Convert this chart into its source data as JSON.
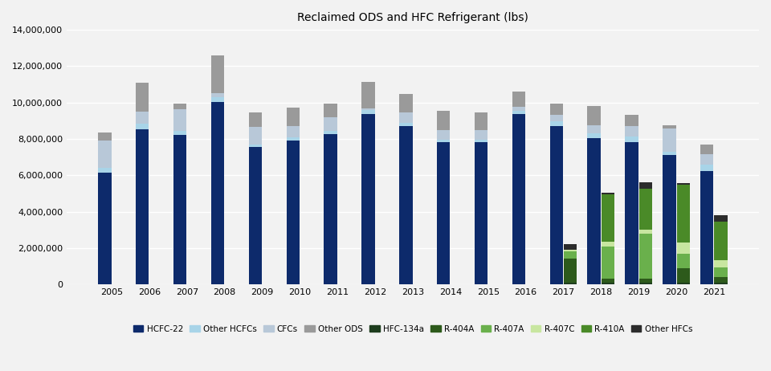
{
  "years": [
    2005,
    2006,
    2007,
    2008,
    2009,
    2010,
    2011,
    2012,
    2013,
    2014,
    2015,
    2016,
    2017,
    2018,
    2019,
    2020,
    2021
  ],
  "title": "Reclaimed ODS and HFC Refrigerant (lbs)",
  "ods_series": {
    "HCFC-22": [
      6150000,
      8550000,
      8200000,
      10050000,
      7550000,
      7900000,
      8250000,
      9350000,
      8700000,
      7800000,
      7800000,
      9350000,
      8700000,
      8050000,
      7800000,
      7100000,
      6250000
    ],
    "Other HCFCs": [
      250000,
      280000,
      220000,
      250000,
      150000,
      180000,
      180000,
      230000,
      180000,
      160000,
      160000,
      180000,
      250000,
      270000,
      320000,
      180000,
      320000
    ],
    "CFCs": [
      1500000,
      680000,
      1200000,
      200000,
      950000,
      620000,
      750000,
      100000,
      580000,
      530000,
      530000,
      240000,
      390000,
      430000,
      580000,
      1300000,
      580000
    ],
    "Other ODS": [
      450000,
      1600000,
      330000,
      2100000,
      800000,
      1000000,
      750000,
      1450000,
      1000000,
      1050000,
      950000,
      850000,
      620000,
      1050000,
      620000,
      180000,
      520000
    ]
  },
  "hfc_series": {
    "HFC-134a": [
      0,
      0,
      0,
      0,
      0,
      0,
      0,
      0,
      0,
      0,
      0,
      0,
      100000,
      100000,
      100000,
      100000,
      100000
    ],
    "R-404A": [
      0,
      0,
      0,
      0,
      0,
      0,
      0,
      0,
      0,
      0,
      0,
      0,
      1300000,
      200000,
      200000,
      800000,
      300000
    ],
    "R-407A": [
      0,
      0,
      0,
      0,
      0,
      0,
      0,
      0,
      0,
      0,
      0,
      0,
      400000,
      1800000,
      2500000,
      800000,
      550000
    ],
    "R-407C": [
      0,
      0,
      0,
      0,
      0,
      0,
      0,
      0,
      0,
      0,
      0,
      0,
      100000,
      250000,
      200000,
      600000,
      400000
    ],
    "R-410A": [
      0,
      0,
      0,
      0,
      0,
      0,
      0,
      0,
      0,
      0,
      0,
      0,
      0,
      2600000,
      2250000,
      3200000,
      2100000
    ],
    "Other HFCs": [
      0,
      0,
      0,
      0,
      0,
      0,
      0,
      0,
      0,
      0,
      0,
      0,
      300000,
      100000,
      350000,
      50000,
      350000
    ]
  },
  "colors": {
    "HCFC-22": "#0d2a6b",
    "Other HCFCs": "#a8d4e8",
    "CFCs": "#b8c8d8",
    "Other ODS": "#9a9a9a",
    "HFC-134a": "#1e3d1e",
    "R-404A": "#2d5a1b",
    "R-407A": "#6ab04c",
    "R-407C": "#c8e6a0",
    "R-410A": "#4a8a28",
    "Other HFCs": "#2c2c2c"
  },
  "ylim": [
    0,
    14000000
  ],
  "yticks": [
    0,
    2000000,
    4000000,
    6000000,
    8000000,
    10000000,
    12000000,
    14000000
  ],
  "background_color": "#f2f2f2",
  "grid_color": "#ffffff"
}
